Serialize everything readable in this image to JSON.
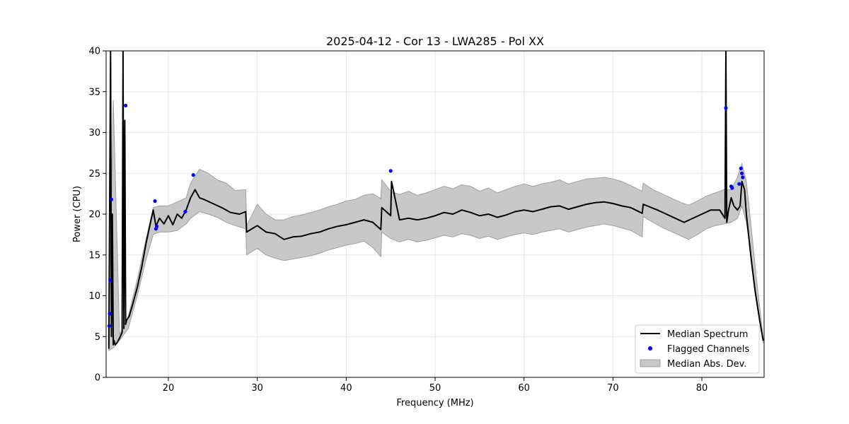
{
  "chart_data": {
    "type": "line",
    "title": "2025-04-12 - Cor 13 - LWA285 - Pol XX",
    "xlabel": "Frequency (MHz)",
    "ylabel": "Power (CPU)",
    "xlim": [
      13.0,
      87.0
    ],
    "ylim": [
      0,
      40
    ],
    "xticks": [
      20,
      30,
      40,
      50,
      60,
      70,
      80
    ],
    "yticks": [
      0,
      5,
      10,
      15,
      20,
      25,
      30,
      35,
      40
    ],
    "grid": true,
    "legend_position": "lower-right",
    "colors": {
      "median": "#000000",
      "flagged": "#0000ff",
      "band_fill": "#c8c8c8",
      "band_edge": "#a0a0a0",
      "grid": "#e6e6e6"
    },
    "series": [
      {
        "name": "Median Spectrum",
        "kind": "line",
        "x": [
          13.3,
          13.5,
          13.6,
          13.7,
          13.8,
          13.9,
          14.0,
          14.2,
          14.5,
          14.8,
          14.9,
          15.0,
          15.1,
          15.2,
          15.3,
          15.6,
          16.0,
          16.5,
          17.0,
          17.5,
          18.0,
          18.3,
          18.6,
          19.0,
          19.5,
          20.0,
          20.5,
          21.0,
          21.5,
          22.0,
          22.5,
          23.0,
          23.5,
          24.0,
          25.0,
          26.0,
          27.0,
          28.0,
          28.7,
          28.8,
          30.0,
          31.0,
          32.0,
          33.0,
          34.0,
          35.0,
          36.0,
          37.0,
          38.0,
          39.0,
          40.0,
          41.0,
          42.0,
          43.0,
          43.9,
          44.0,
          45.0,
          45.1,
          46.0,
          47.0,
          48.0,
          49.0,
          50.0,
          51.0,
          52.0,
          53.0,
          54.0,
          55.0,
          56.0,
          57.0,
          58.0,
          59.0,
          60.0,
          61.0,
          62.0,
          63.0,
          64.0,
          65.0,
          66.0,
          67.0,
          68.0,
          69.0,
          70.0,
          71.0,
          72.0,
          73.3,
          73.4,
          75.0,
          76.0,
          77.0,
          78.0,
          79.0,
          80.0,
          81.0,
          82.0,
          82.6,
          82.7,
          82.8,
          83.0,
          83.3,
          83.6,
          84.0,
          84.3,
          84.5,
          84.8,
          85.0,
          85.3,
          85.6,
          86.0,
          86.5,
          86.9
        ],
        "y": [
          3.5,
          40.0,
          5.0,
          20.0,
          4.0,
          4.5,
          4.0,
          4.2,
          4.8,
          5.5,
          40.0,
          6.0,
          31.5,
          6.5,
          7.0,
          7.5,
          9.0,
          11.0,
          13.5,
          16.5,
          19.0,
          20.5,
          18.5,
          19.5,
          18.8,
          19.8,
          18.7,
          20.0,
          19.5,
          20.5,
          22.0,
          23.0,
          22.0,
          21.8,
          21.3,
          20.8,
          20.2,
          20.0,
          20.3,
          17.8,
          18.6,
          17.8,
          17.6,
          16.9,
          17.2,
          17.3,
          17.6,
          17.8,
          18.2,
          18.5,
          18.7,
          19.0,
          19.3,
          19.0,
          18.1,
          20.8,
          19.8,
          24.0,
          19.3,
          19.5,
          19.3,
          19.5,
          19.8,
          20.2,
          20.0,
          20.5,
          20.2,
          19.8,
          20.0,
          19.6,
          19.9,
          20.3,
          20.5,
          20.3,
          20.6,
          20.9,
          21.0,
          20.6,
          20.9,
          21.2,
          21.4,
          21.5,
          21.3,
          21.0,
          20.8,
          20.1,
          21.2,
          20.5,
          20.0,
          19.5,
          19.0,
          19.5,
          20.0,
          20.5,
          20.5,
          19.5,
          40.0,
          19.0,
          20.5,
          22.0,
          21.0,
          20.5,
          21.0,
          24.0,
          23.0,
          20.0,
          17.0,
          14.0,
          10.5,
          7.0,
          4.5
        ]
      },
      {
        "name": "Flagged Channels",
        "kind": "points",
        "x": [
          13.35,
          13.4,
          13.45,
          13.6,
          15.2,
          18.5,
          18.6,
          18.7,
          21.9,
          22.8,
          45.0,
          82.7,
          83.3,
          83.4,
          84.2,
          84.4,
          84.5,
          84.6
        ],
        "y": [
          6.3,
          7.8,
          11.9,
          21.8,
          33.3,
          21.6,
          18.2,
          18.5,
          20.3,
          24.8,
          25.3,
          33.0,
          23.4,
          23.2,
          23.7,
          25.6,
          25.0,
          24.5
        ]
      },
      {
        "name": "Median Abs. Dev.",
        "kind": "band",
        "x": [
          13.3,
          13.8,
          14.5,
          15.5,
          16.5,
          17.5,
          18.3,
          19.0,
          20.0,
          21.0,
          22.0,
          22.5,
          23.5,
          24.5,
          25.5,
          26.5,
          27.5,
          28.7,
          28.8,
          30.0,
          31.0,
          32.0,
          33.0,
          34.0,
          35.0,
          36.0,
          37.0,
          38.0,
          39.0,
          40.0,
          41.0,
          42.0,
          43.0,
          43.9,
          44.0,
          45.0,
          46.0,
          47.0,
          48.0,
          49.0,
          50.0,
          51.0,
          52.0,
          53.0,
          54.0,
          55.0,
          56.0,
          57.0,
          58.0,
          59.0,
          60.0,
          61.0,
          62.0,
          63.0,
          64.0,
          65.0,
          66.0,
          67.0,
          68.0,
          69.0,
          70.0,
          71.0,
          72.0,
          73.3,
          73.4,
          74.5,
          75.5,
          76.5,
          77.5,
          78.5,
          79.5,
          80.5,
          81.5,
          82.5,
          83.3,
          84.0,
          84.5,
          85.0,
          85.5,
          86.0,
          86.9
        ],
        "lower": [
          3.3,
          3.6,
          4.5,
          6.0,
          10.0,
          14.5,
          17.5,
          17.8,
          17.8,
          18.0,
          18.8,
          19.5,
          20.3,
          20.0,
          19.6,
          19.0,
          18.6,
          18.2,
          15.0,
          15.8,
          15.0,
          14.6,
          14.3,
          14.5,
          14.7,
          14.9,
          15.2,
          15.6,
          15.9,
          16.2,
          16.4,
          16.7,
          15.9,
          14.8,
          17.8,
          17.0,
          16.6,
          16.9,
          16.6,
          16.8,
          17.1,
          17.4,
          17.2,
          17.6,
          17.4,
          17.0,
          17.3,
          16.9,
          17.2,
          17.5,
          17.7,
          17.5,
          17.8,
          18.0,
          18.2,
          17.8,
          18.1,
          18.4,
          18.6,
          18.8,
          18.6,
          18.3,
          18.0,
          17.2,
          19.7,
          19.0,
          18.4,
          17.9,
          17.4,
          16.9,
          17.5,
          18.2,
          18.6,
          18.8,
          19.0,
          19.5,
          21.0,
          19.0,
          15.5,
          11.0,
          4.2
        ],
        "upper": [
          5.0,
          34.0,
          5.2,
          7.5,
          12.0,
          17.0,
          20.8,
          21.0,
          21.0,
          21.5,
          22.0,
          23.8,
          25.5,
          25.0,
          24.2,
          23.8,
          22.9,
          23.0,
          18.6,
          21.2,
          20.0,
          19.3,
          19.3,
          19.7,
          19.9,
          20.2,
          20.5,
          20.9,
          21.2,
          21.6,
          21.8,
          22.3,
          22.5,
          21.9,
          24.2,
          22.8,
          22.4,
          22.8,
          22.3,
          22.6,
          23.0,
          23.4,
          23.1,
          23.6,
          23.4,
          22.8,
          23.2,
          22.6,
          23.0,
          23.4,
          23.7,
          23.4,
          23.7,
          23.9,
          24.2,
          23.7,
          24.0,
          24.3,
          24.4,
          24.5,
          24.3,
          24.0,
          23.5,
          22.8,
          23.8,
          23.0,
          22.5,
          22.0,
          21.5,
          21.1,
          21.6,
          22.2,
          22.6,
          23.0,
          23.0,
          24.5,
          26.2,
          24.0,
          19.0,
          13.5,
          4.8
        ]
      }
    ],
    "legend": [
      {
        "label": "Median Spectrum",
        "marker": "line"
      },
      {
        "label": "Flagged Channels",
        "marker": "dot"
      },
      {
        "label": "Median Abs. Dev.",
        "marker": "patch"
      }
    ]
  }
}
